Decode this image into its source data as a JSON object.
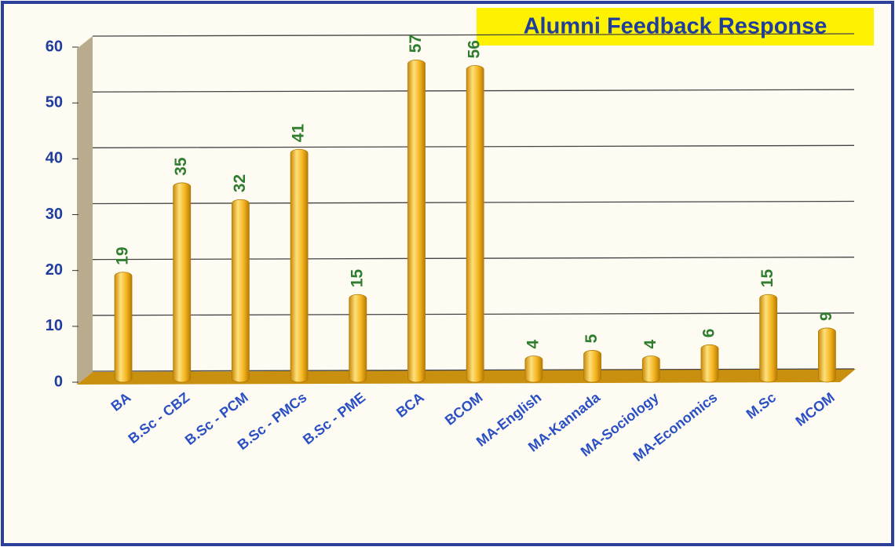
{
  "chart_data": {
    "type": "bar",
    "title": "Alumni Feedback Response",
    "categories": [
      "BA",
      "B.Sc - CBZ",
      "B.Sc - PCM",
      "B.Sc - PMCs",
      "B.Sc - PME",
      "BCA",
      "BCOM",
      "MA-English",
      "MA-Kannada",
      "MA-Sociology",
      "MA-Economics",
      "M.Sc",
      "MCOM"
    ],
    "values": [
      19,
      35,
      32,
      41,
      15,
      57,
      56,
      4,
      5,
      4,
      6,
      15,
      9
    ],
    "color": "#f2b21c",
    "ylim": [
      0,
      60
    ],
    "yticks": [
      0,
      10,
      20,
      30,
      40,
      50,
      60
    ],
    "grid": true
  }
}
